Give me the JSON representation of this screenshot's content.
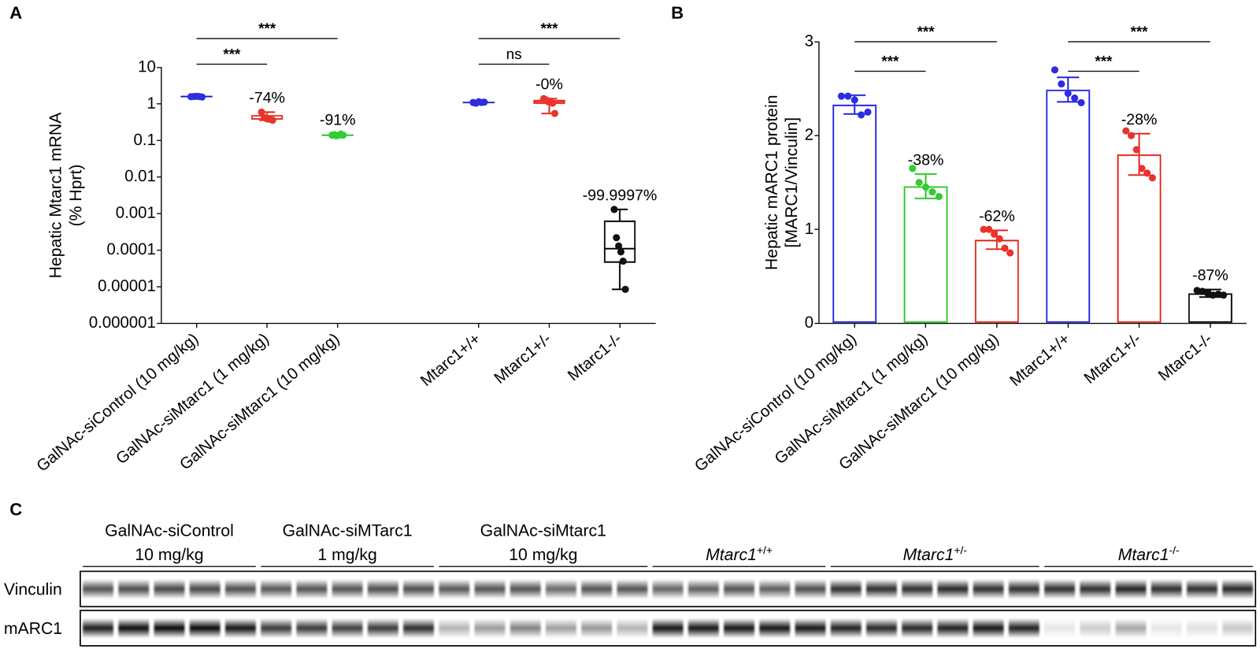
{
  "chart_data": [
    {
      "type": "box",
      "title": "A",
      "categories": [
        "GalNAc-siControl (10 mg/kg)",
        "GalNAc-siMtarc1 (1 mg/kg)",
        "GalNAc-siMtarc1 (10 mg/kg)",
        null,
        "Mtarc1+/+",
        "Mtarc1+/-",
        "Mtarc1-/-"
      ],
      "ylabel": [
        "Hepatic Mtarc1 mRNA",
        "(% Hprt)"
      ],
      "log": "y",
      "ylim": [
        1e-06,
        10
      ],
      "yticks": [
        1e-06,
        1e-05,
        0.0001,
        0.001,
        0.01,
        0.1,
        1,
        10
      ],
      "grid": false,
      "colors": [
        "#2e2ee0",
        "#e8342c",
        "#33cc33",
        null,
        "#2e2ee0",
        "#e8342c",
        "#111111"
      ],
      "boxes": [
        {
          "min": 1.55,
          "q1": 1.57,
          "median": 1.6,
          "q3": 1.61,
          "max": 1.62
        },
        {
          "min": 0.36,
          "q1": 0.37,
          "median": 0.39,
          "q3": 0.5,
          "max": 0.6
        },
        {
          "min": 0.135,
          "q1": 0.138,
          "median": 0.14,
          "q3": 0.146,
          "max": 0.15
        },
        null,
        {
          "min": 1.05,
          "q1": 1.07,
          "median": 1.1,
          "q3": 1.13,
          "max": 1.15
        },
        {
          "min": 0.55,
          "q1": 1.0,
          "median": 1.17,
          "q3": 1.3,
          "max": 1.4
        },
        {
          "min": 8.5e-06,
          "q1": 4.5e-05,
          "median": 0.00011,
          "q3": 0.00065,
          "max": 0.0013
        }
      ],
      "points": [
        [
          1.58,
          1.6,
          1.62,
          1.6,
          1.55
        ],
        [
          0.6,
          0.42,
          0.39,
          0.38,
          0.36
        ],
        [
          0.14,
          0.145,
          0.135,
          0.14,
          0.15,
          0.14
        ],
        null,
        [
          1.1,
          1.05,
          1.15,
          1.1,
          1.12
        ],
        [
          1.4,
          1.3,
          1.15,
          1.2,
          1.05,
          0.55
        ],
        [
          0.0013,
          0.00022,
          0.00013,
          9e-05,
          5e-05,
          8.5e-06
        ]
      ],
      "annotations": [
        null,
        "-74%",
        "-91%",
        null,
        null,
        "-0%",
        "-99.9997%"
      ],
      "brackets": [
        {
          "from": "GalNAc-siControl (10 mg/kg)",
          "to": "GalNAc-siMtarc1 (1 mg/kg)",
          "label": "***"
        },
        {
          "from": "GalNAc-siControl (10 mg/kg)",
          "to": "GalNAc-siMtarc1 (10 mg/kg)",
          "label": "***"
        },
        {
          "from": "Mtarc1+/+",
          "to": "Mtarc1+/-",
          "label": "ns"
        },
        {
          "from": "Mtarc1+/+",
          "to": "Mtarc1-/-",
          "label": "***"
        }
      ]
    },
    {
      "type": "bar",
      "title": "B",
      "categories": [
        "GalNAc-siControl (10 mg/kg)",
        "GalNAc-siMtarc1 (1 mg/kg)",
        "GalNAc-siMtarc1 (10 mg/kg)",
        "Mtarc1+/+",
        "Mtarc1+/-",
        "Mtarc1-/-"
      ],
      "ylabel": [
        "Hepatic mARC1 protein",
        "[MARC1/Vinculin]"
      ],
      "ylim": [
        0,
        3
      ],
      "yticks": [
        0,
        1,
        2,
        3
      ],
      "grid": false,
      "colors": [
        "#2e2ee0",
        "#33cc33",
        "#e8342c",
        "#2e2ee0",
        "#e8342c",
        "#111111"
      ],
      "values": [
        2.33,
        1.46,
        0.89,
        2.49,
        1.8,
        0.32
      ],
      "errors": [
        0.1,
        0.13,
        0.1,
        0.13,
        0.22,
        0.04
      ],
      "points": [
        [
          2.42,
          2.42,
          2.38,
          2.22,
          2.25
        ],
        [
          1.65,
          1.5,
          1.45,
          1.4,
          1.35
        ],
        [
          1.0,
          1.0,
          0.95,
          0.9,
          0.8,
          0.75
        ],
        [
          2.7,
          2.55,
          2.45,
          2.4,
          2.35
        ],
        [
          2.05,
          2.0,
          1.85,
          1.65,
          1.6,
          1.55
        ],
        [
          0.35,
          0.34,
          0.32,
          0.3,
          0.31,
          0.3
        ]
      ],
      "annotations": [
        null,
        "-38%",
        "-62%",
        null,
        "-28%",
        "-87%"
      ],
      "brackets": [
        {
          "from": "GalNAc-siControl (10 mg/kg)",
          "to": "GalNAc-siMtarc1 (1 mg/kg)",
          "label": "***"
        },
        {
          "from": "GalNAc-siControl (10 mg/kg)",
          "to": "GalNAc-siMtarc1 (10 mg/kg)",
          "label": "***"
        },
        {
          "from": "Mtarc1+/+",
          "to": "Mtarc1+/-",
          "label": "***"
        },
        {
          "from": "Mtarc1+/+",
          "to": "Mtarc1-/-",
          "label": "***"
        }
      ]
    }
  ],
  "blot": {
    "title": "C",
    "groups": [
      {
        "lines": [
          "GalNAc-siControl",
          "10 mg/kg"
        ],
        "lanes": 5
      },
      {
        "lines": [
          "GalNAc-siMTarc1",
          "1 mg/kg"
        ],
        "lanes": 5
      },
      {
        "lines": [
          "GalNAc-siMtarc1",
          "10 mg/kg"
        ],
        "lanes": 6
      },
      {
        "lines": [
          "Mtarc1"
        ],
        "sup": "+/+",
        "lanes": 5
      },
      {
        "lines": [
          "Mtarc1"
        ],
        "sup": "+/-",
        "lanes": 6
      },
      {
        "lines": [
          "Mtarc1"
        ],
        "sup": "-/-",
        "lanes": 6
      }
    ],
    "rows": [
      {
        "name": "Vinculin",
        "intensity": [
          0.7,
          0.72,
          0.75,
          0.75,
          0.72,
          0.68,
          0.7,
          0.7,
          0.72,
          0.72,
          0.68,
          0.7,
          0.7,
          0.6,
          0.7,
          0.7,
          0.62,
          0.65,
          0.7,
          0.65,
          0.72,
          0.85,
          0.85,
          0.85,
          0.88,
          0.85,
          0.85,
          0.85,
          0.85,
          0.9,
          0.85,
          0.85,
          0.88
        ]
      },
      {
        "name": "mARC1",
        "intensity": [
          0.92,
          0.98,
          1,
          1,
          0.95,
          0.8,
          0.8,
          0.78,
          0.8,
          0.85,
          0.3,
          0.4,
          0.5,
          0.38,
          0.42,
          0.3,
          0.95,
          0.95,
          0.95,
          0.95,
          0.95,
          0.9,
          0.88,
          0.88,
          0.9,
          0.95,
          0.9,
          0.1,
          0.2,
          0.35,
          0.1,
          0.12,
          0.22
        ]
      }
    ]
  }
}
